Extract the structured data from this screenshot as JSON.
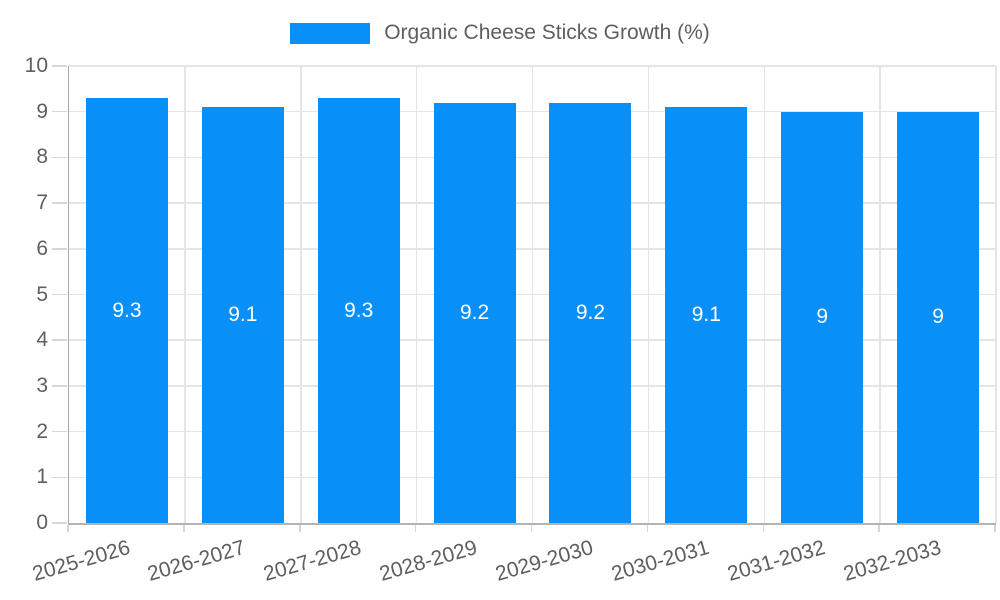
{
  "chart_data": {
    "type": "bar",
    "title": "",
    "legend_label": "Organic Cheese Sticks Growth (%)",
    "legend_position": "top",
    "categories": [
      "2025-2026",
      "2026-2027",
      "2027-2028",
      "2028-2029",
      "2029-2030",
      "2030-2031",
      "2031-2032",
      "2032-2033"
    ],
    "values": [
      9.3,
      9.1,
      9.3,
      9.2,
      9.2,
      9.1,
      9,
      9
    ],
    "value_labels": [
      "9.3",
      "9.1",
      "9.3",
      "9.2",
      "9.2",
      "9.1",
      "9",
      "9"
    ],
    "xlabel": "",
    "ylabel": "",
    "ylim": [
      0,
      10
    ],
    "yticks": [
      0,
      1,
      2,
      3,
      4,
      5,
      6,
      7,
      8,
      9,
      10
    ],
    "grid": true,
    "colors": {
      "bar": "#0990f8",
      "value_label": "#ffffff",
      "axis_text": "#5f5f5f",
      "grid_line": "#e5e5e5",
      "tick_mark": "#d6d6d6",
      "axis_line": "#b3b3b3"
    }
  }
}
